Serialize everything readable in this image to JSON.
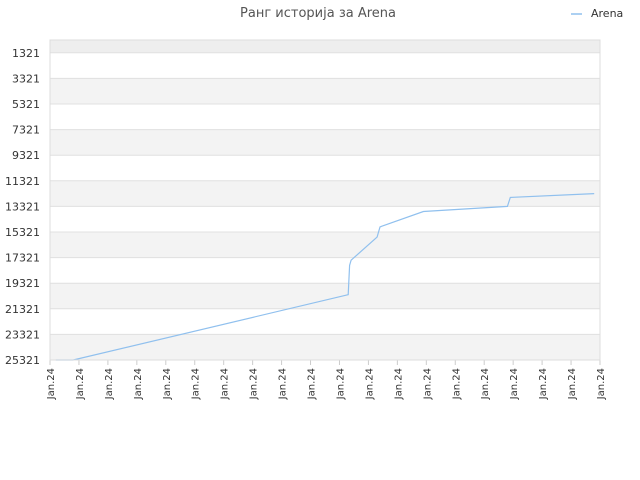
{
  "chart_data": {
    "type": "line",
    "title": "Ранг историја за Arena",
    "xlabel": "",
    "ylabel": "",
    "y_inverted": true,
    "ylim": [
      25321,
      321
    ],
    "y_ticks": [
      1321,
      3321,
      5321,
      7321,
      9321,
      11321,
      13321,
      15321,
      17321,
      19321,
      21321,
      23321,
      25321
    ],
    "x_tick_labels": [
      "Jan.24",
      "Jan.24",
      "Jan.24",
      "Jan.24",
      "Jan.24",
      "Jan.24",
      "Jan.24",
      "Jan.24",
      "Jan.24",
      "Jan.24",
      "Jan.24",
      "Jan.24",
      "Jan.24",
      "Jan.24",
      "Jan.24",
      "Jan.24",
      "Jan.24",
      "Jan.24",
      "Jan.24",
      "Jan.24"
    ],
    "grid": true,
    "legend_position": "top-right",
    "series": [
      {
        "name": "Arena",
        "color": "#90c0ee",
        "x": [
          0.2,
          0.8,
          10.3,
          10.35,
          10.4,
          11.3,
          11.4,
          12.9,
          15.8,
          15.9,
          18.8
        ],
        "y": [
          25321,
          25321,
          20221,
          17921,
          17521,
          15721,
          14921,
          13721,
          13321,
          12621,
          12321
        ]
      }
    ]
  }
}
